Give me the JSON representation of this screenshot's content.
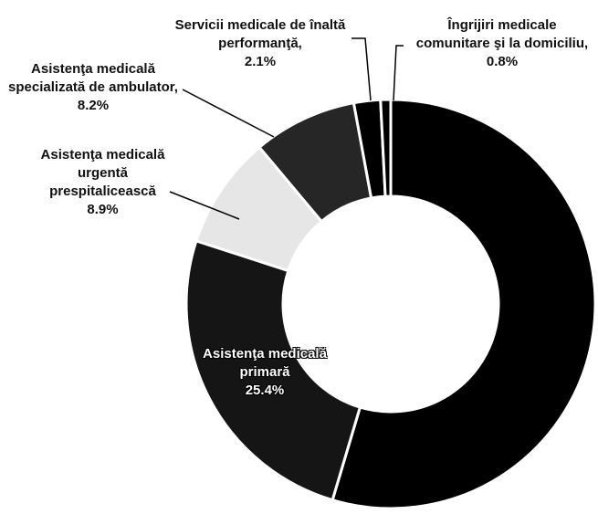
{
  "chart_data": {
    "type": "donut",
    "categories": [
      null,
      "Asistenţa medicală primară",
      "Asistenţa medicală urgentă prespitalicească",
      "Asistenţa medicală specializată de ambulator,",
      "Servicii medicale de înaltă performanţă,",
      "Îngrijiri medicale comunitare şi la domiciliu,"
    ],
    "values": [
      54.6,
      25.4,
      8.9,
      8.2,
      2.1,
      0.8
    ],
    "value_labels": [
      null,
      "25.4%",
      "8.9%",
      "8.2%",
      "2.1%",
      "0.8%"
    ],
    "colors": [
      "#000000",
      "#151515",
      "#e6e6e6",
      "#262626",
      "#000000",
      "#000000"
    ]
  }
}
